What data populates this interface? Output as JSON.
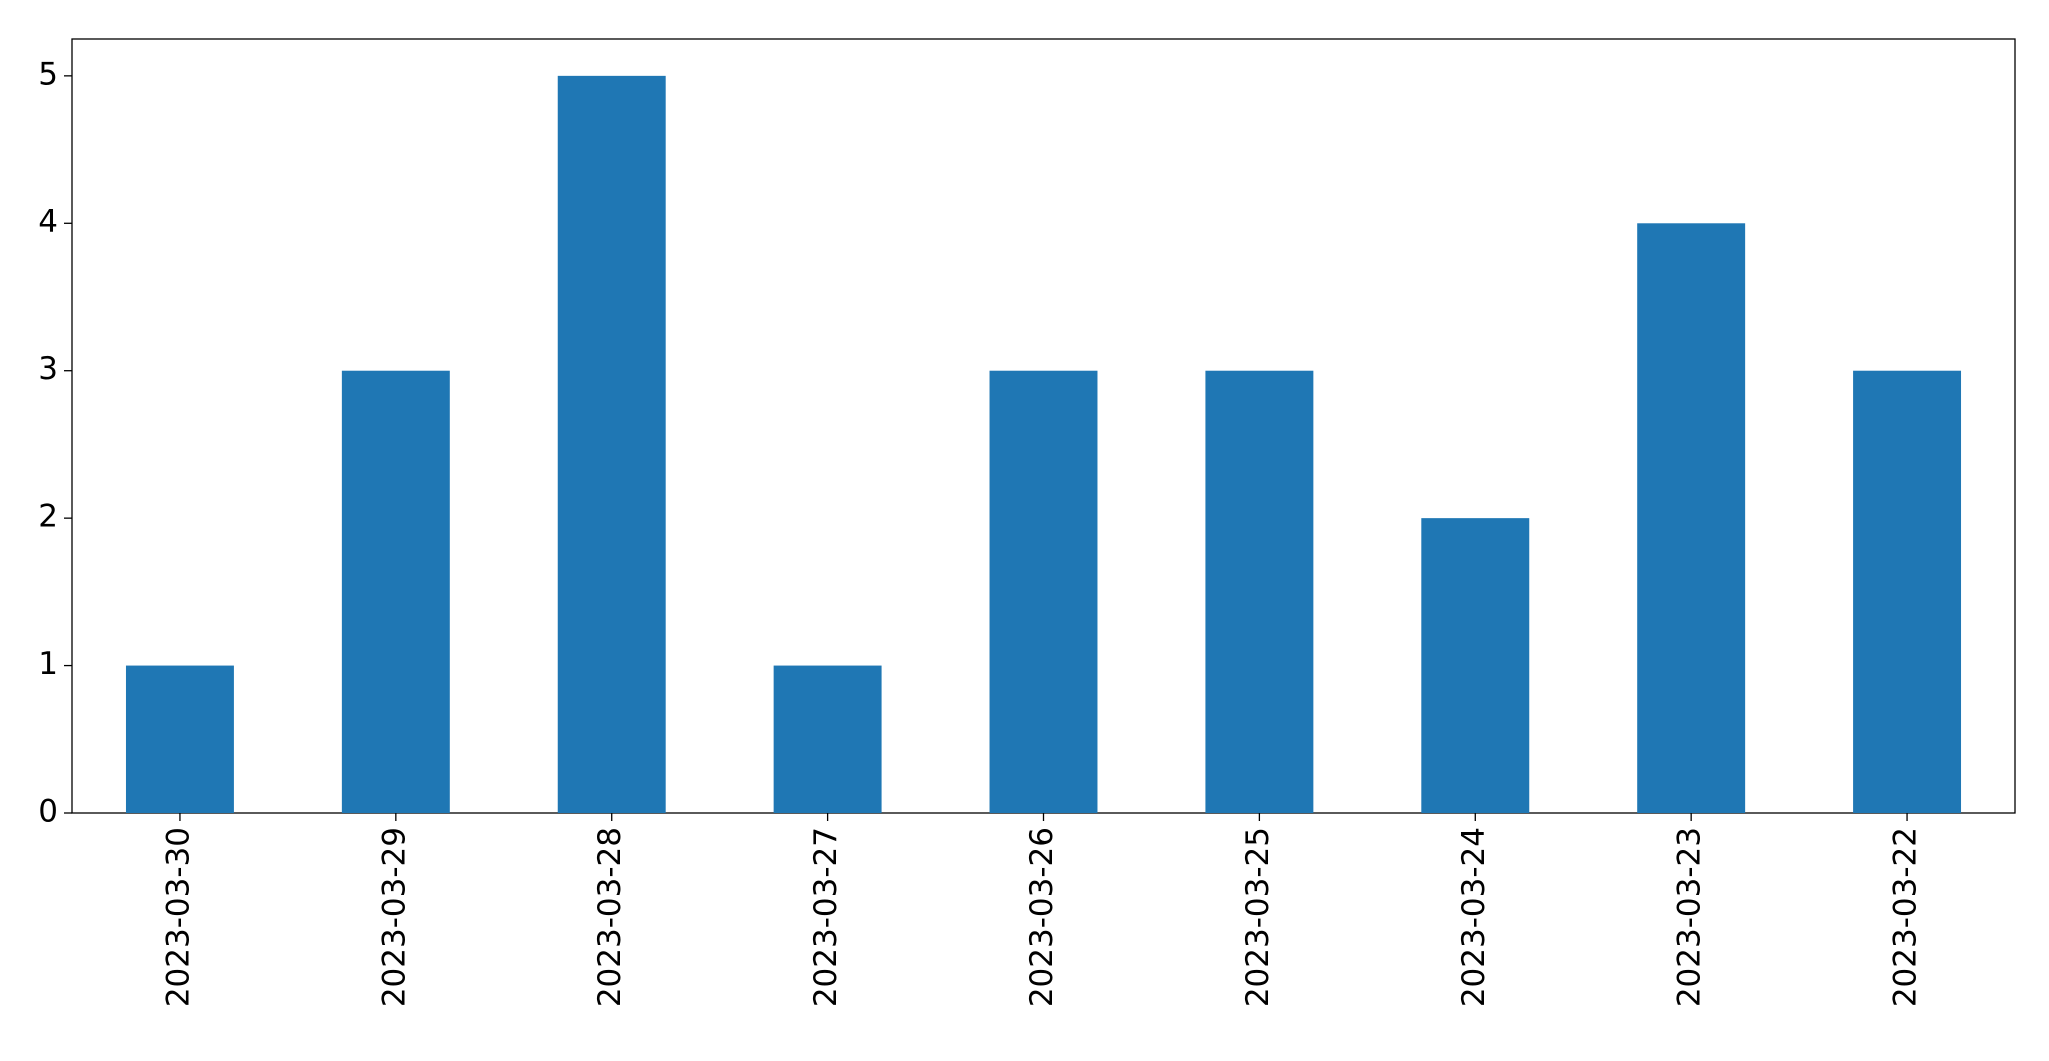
{
  "chart_data": {
    "type": "bar",
    "categories": [
      "2023-03-30",
      "2023-03-29",
      "2023-03-28",
      "2023-03-27",
      "2023-03-26",
      "2023-03-25",
      "2023-03-24",
      "2023-03-23",
      "2023-03-22"
    ],
    "values": [
      1,
      3,
      5,
      1,
      3,
      3,
      2,
      4,
      3
    ],
    "color": "#1f77b4",
    "ylim": [
      0,
      5.25
    ],
    "yticks": [
      0,
      1,
      2,
      3,
      4,
      5
    ],
    "grid": false
  }
}
